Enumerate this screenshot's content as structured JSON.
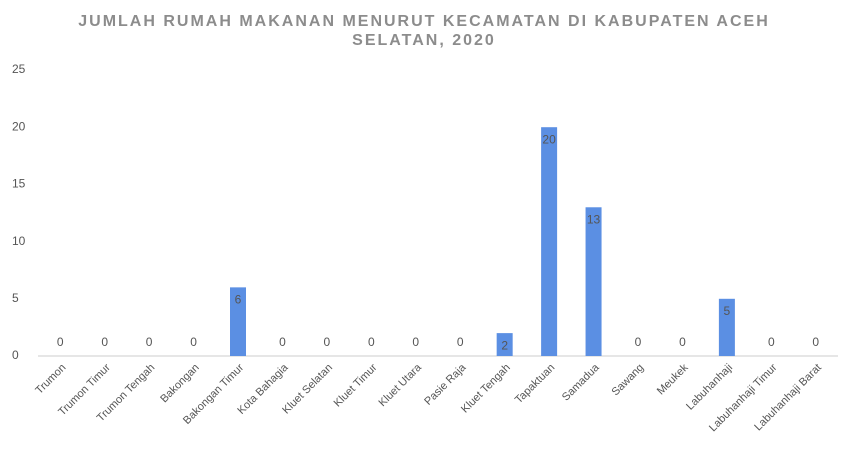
{
  "chart_data": {
    "type": "bar",
    "title": "JUMLAH RUMAH MAKANAN MENURUT KECAMATAN DI KABUPATEN ACEH SELATAN, 2020",
    "categories": [
      "Trumon",
      "Trumon Timur",
      "Trumon Tengah",
      "Bakongan",
      "Bakongan Timur",
      "Kota Bahagia",
      "Kluet Selatan",
      "Kluet Timur",
      "Kluet Utara",
      "Pasie Raja",
      "Kluet Tengah",
      "Tapaktuan",
      "Samadua",
      "Sawang",
      "Meukek",
      "Labuhanhaji",
      "Labuhanhaji Timur",
      "Labuhanhaji Barat"
    ],
    "values": [
      0,
      0,
      0,
      0,
      6,
      0,
      0,
      0,
      0,
      0,
      2,
      20,
      13,
      0,
      0,
      5,
      0,
      0
    ],
    "color": "#5b8fe3",
    "ylim": [
      0,
      25
    ],
    "yticks": [
      0,
      5,
      10,
      15,
      20,
      25
    ],
    "grid": false
  }
}
